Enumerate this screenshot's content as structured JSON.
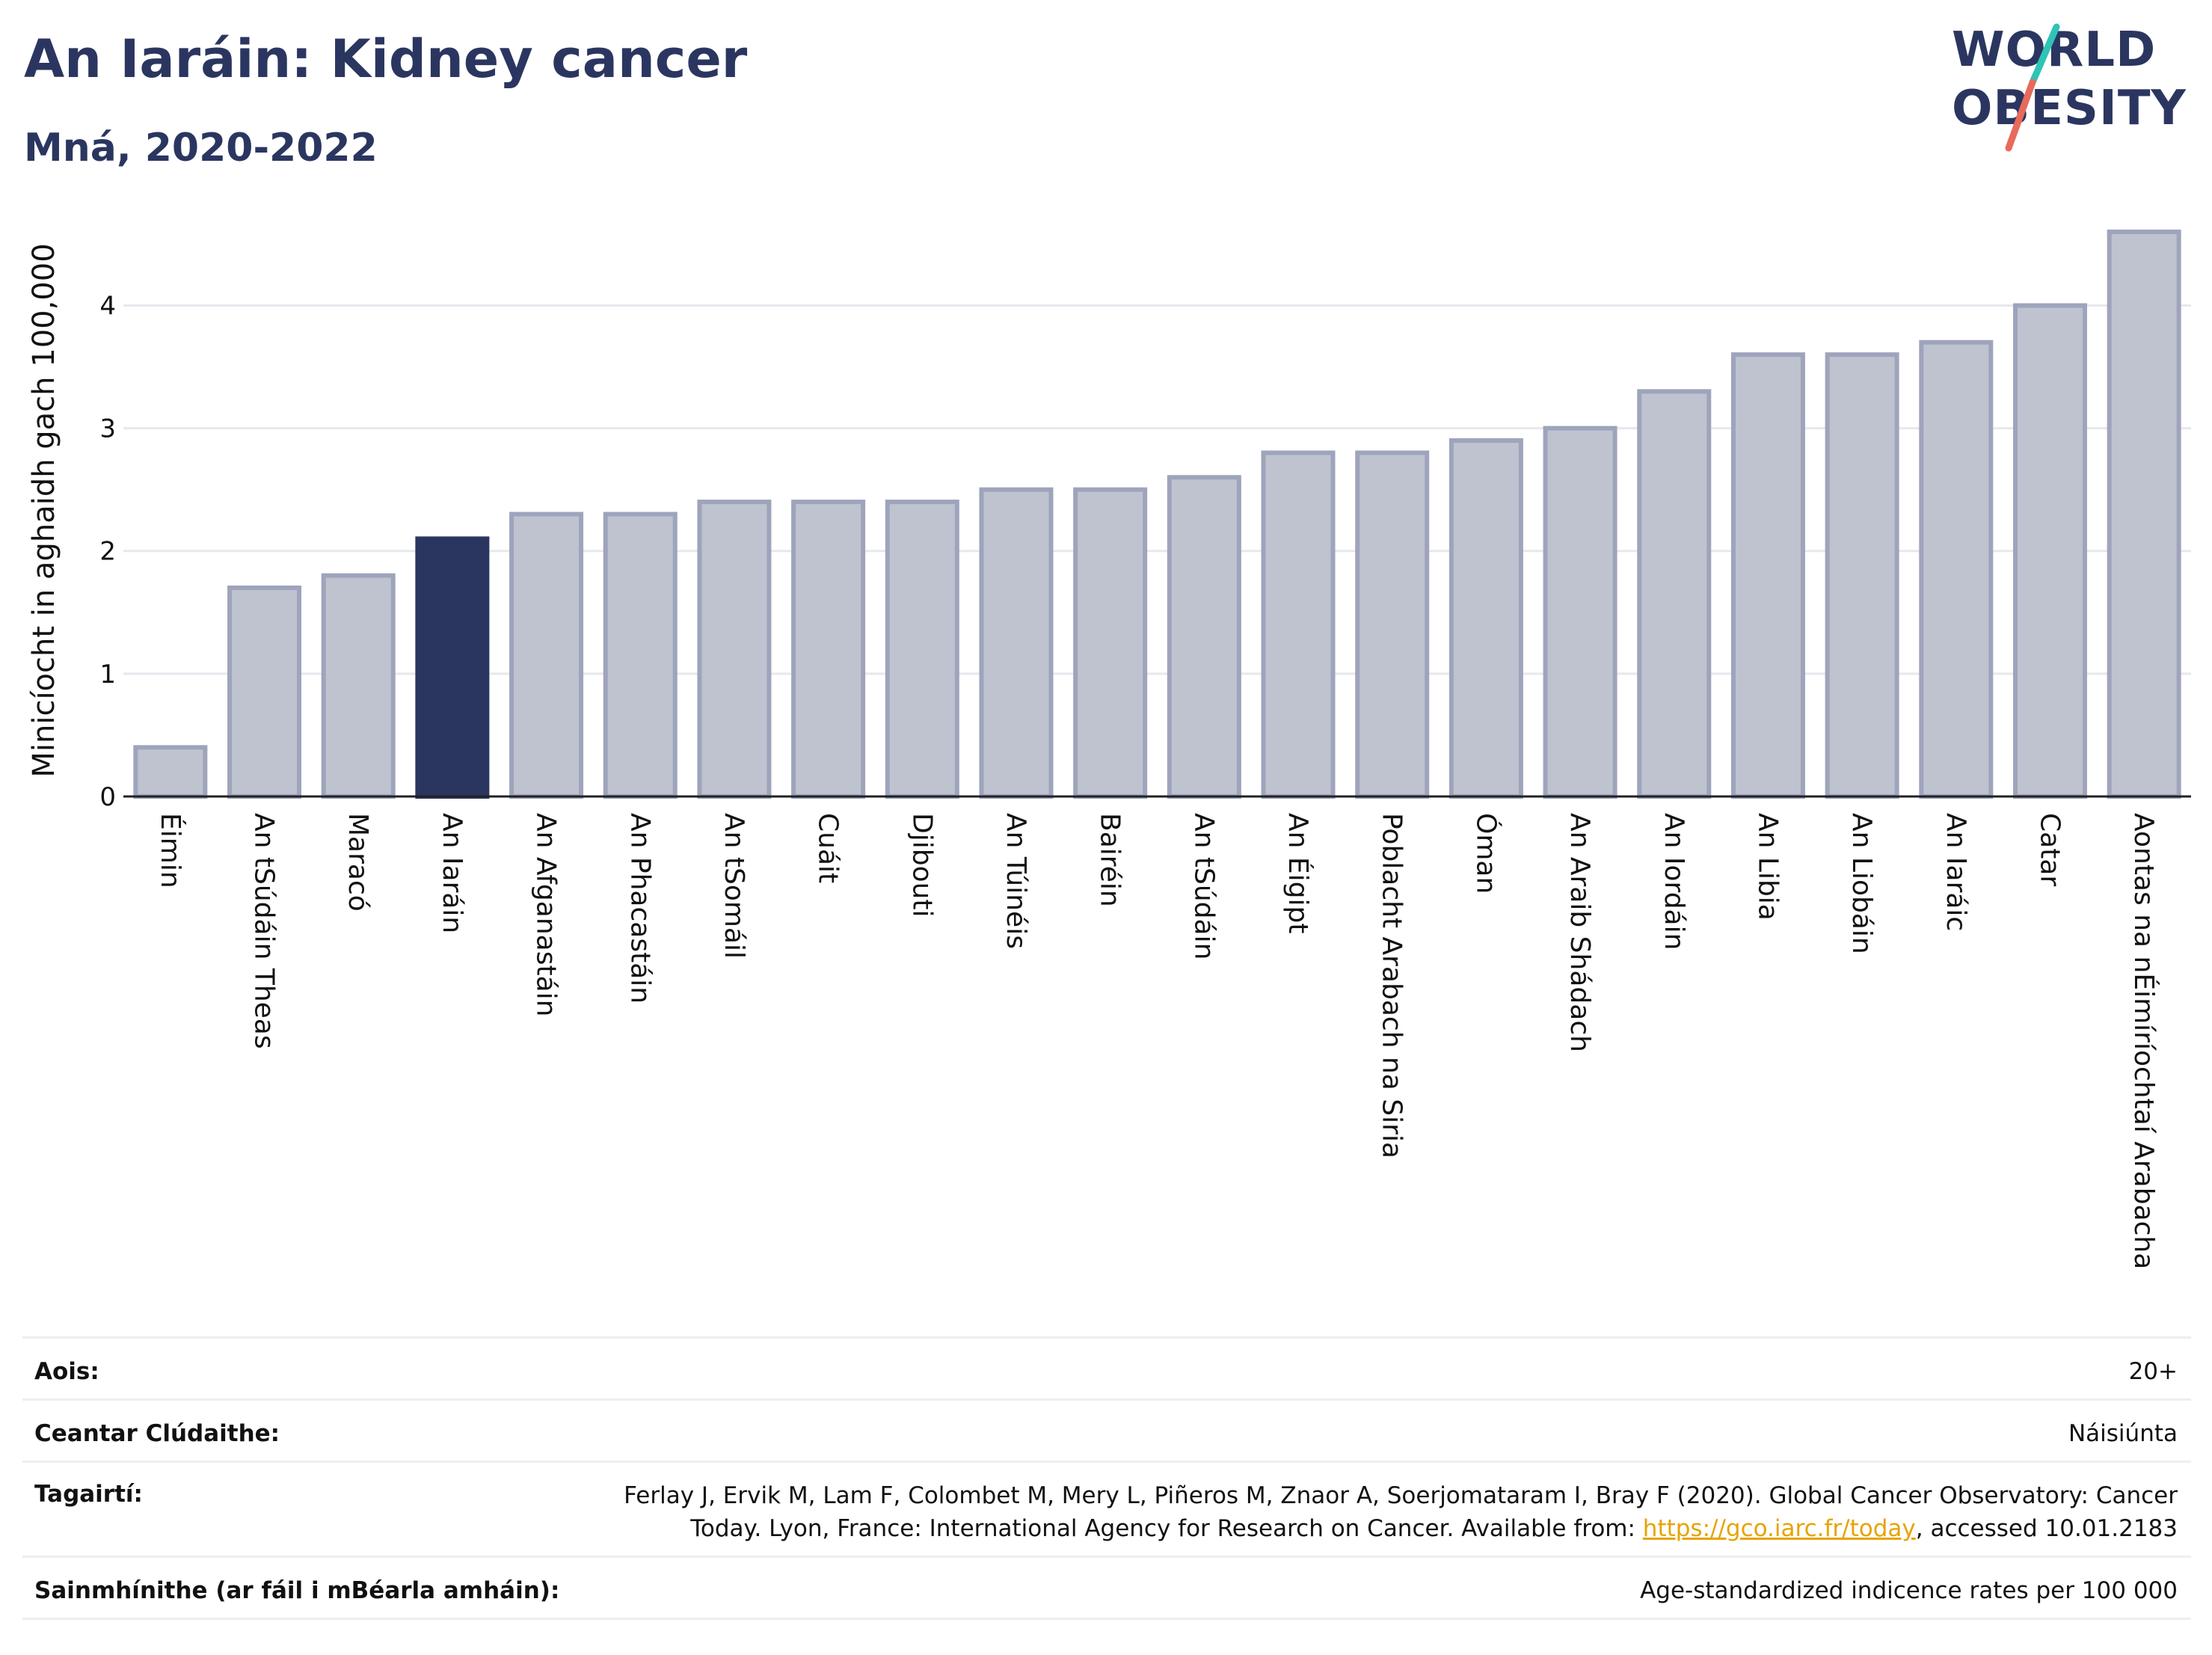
{
  "header": {
    "title": "An Iaráin: Kidney cancer",
    "subtitle": "Mná, 2020-2022"
  },
  "logo": {
    "line1": "WORLD",
    "line2": "OBESITY"
  },
  "colors": {
    "highlight": "#2b3660",
    "bar": "#bfc3d0",
    "bar_border": "#9ea4bb",
    "accent_teal": "#2ec4b6",
    "accent_red": "#e86a5b"
  },
  "chart_data": {
    "type": "bar",
    "ylabel": "Minicíocht in aghaidh gach 100,000",
    "ylim": [
      0,
      4.6
    ],
    "yticks": [
      0,
      1,
      2,
      3,
      4
    ],
    "grid": true,
    "highlight": "An Iaráin",
    "categories": [
      "Éimin",
      "An tSúdáin Theas",
      "Maracó",
      "An Iaráin",
      "An Afganastáin",
      "An Phacastáin",
      "An tSomáil",
      "Cuáit",
      "Djibouti",
      "An Túinéis",
      "Bairéin",
      "An tSúdáin",
      "An Éigipt",
      "Poblacht Arabach na Siria",
      "Óman",
      "An Araib Shádach",
      "An Iordáin",
      "An Libia",
      "An Liobáin",
      "An Iaráic",
      "Catar",
      "Aontas na nÉimíríochtaí Arabacha"
    ],
    "values": [
      0.4,
      1.7,
      1.8,
      2.1,
      2.3,
      2.3,
      2.4,
      2.4,
      2.4,
      2.5,
      2.5,
      2.6,
      2.8,
      2.8,
      2.9,
      3.0,
      3.3,
      3.6,
      3.6,
      3.7,
      4.0,
      4.6
    ]
  },
  "info": {
    "age_label": "Aois:",
    "age_value": "20+",
    "coverage_label": "Ceantar Clúdaithe:",
    "coverage_value": "Náisiúnta",
    "refs_label": "Tagairtí:",
    "refs_text1": "Ferlay J, Ervik M, Lam F, Colombet M, Mery L, Piñeros M, Znaor A, Soerjomataram I, Bray F (2020). Global Cancer Observatory: Cancer",
    "refs_text2": "Today. Lyon, France: International Agency for Research on Cancer. Available from: ",
    "refs_link": "https://gco.iarc.fr/today",
    "refs_text3": ", accessed 10.01.2183",
    "defs_label": "Sainmhínithe (ar fáil i mBéarla amháin):",
    "defs_value": "Age-standardized indicence rates per 100 000"
  }
}
